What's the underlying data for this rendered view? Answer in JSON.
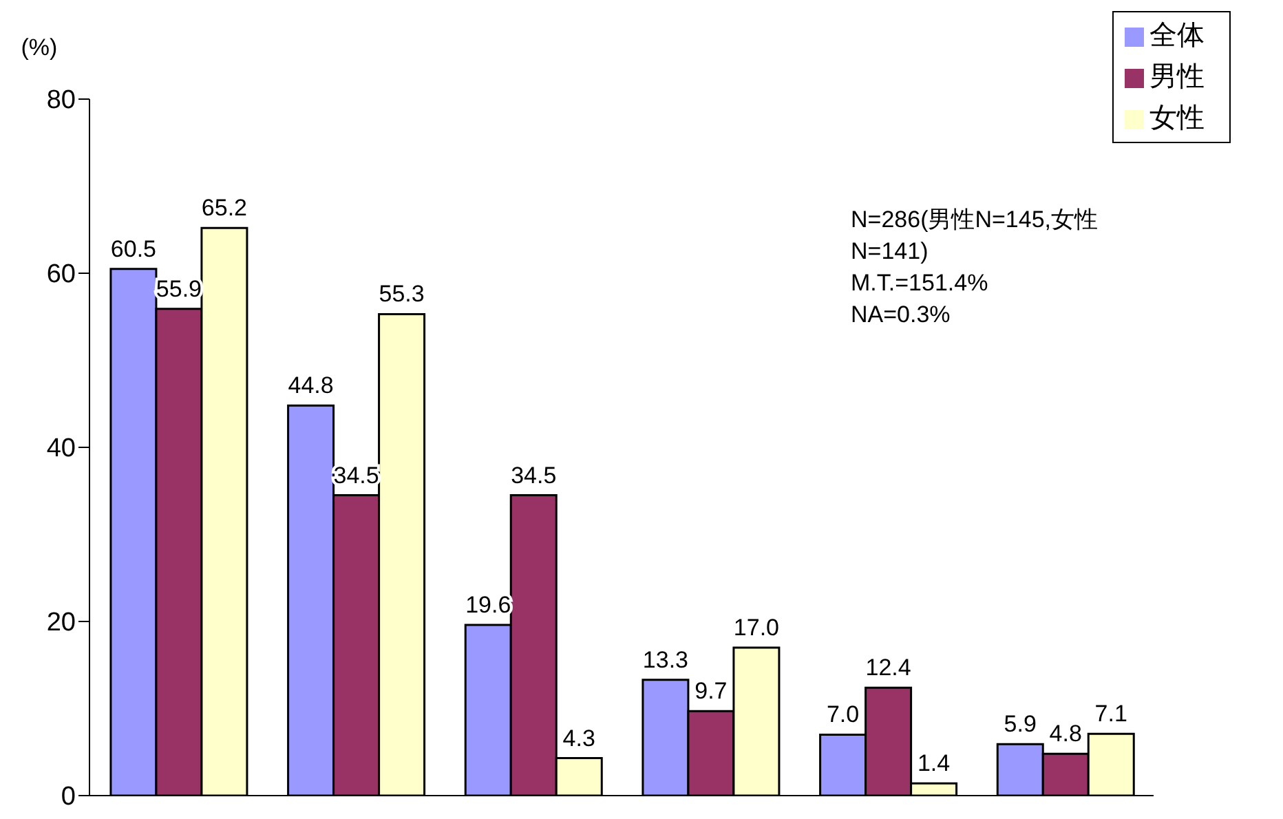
{
  "chart_data": {
    "type": "bar",
    "ylabel": "(%)",
    "categories": [
      null,
      null,
      null,
      null,
      null,
      null
    ],
    "series": [
      {
        "name": "全体",
        "color": "#9999ff",
        "values": [
          60.5,
          44.8,
          19.6,
          13.3,
          7.0,
          5.9
        ],
        "value_labels": [
          "60.5",
          "44.8",
          "19.6",
          "13.3",
          "7.0",
          "5.9"
        ]
      },
      {
        "name": "男性",
        "color": "#993366",
        "values": [
          55.9,
          34.5,
          34.5,
          9.7,
          12.4,
          4.8
        ],
        "value_labels": [
          "55.9",
          "34.5",
          "34.5",
          "9.7",
          "12.4",
          "4.8"
        ]
      },
      {
        "name": "女性",
        "color": "#ffffcc",
        "values": [
          65.2,
          55.3,
          4.3,
          17.0,
          1.4,
          7.1
        ],
        "value_labels": [
          "65.2",
          "55.3",
          "4.3",
          "17.0",
          "1.4",
          "7.1"
        ]
      }
    ],
    "ylim": [
      0,
      80
    ],
    "yticks": [
      0,
      20,
      40,
      60,
      80
    ],
    "grid": false,
    "legend": "top right",
    "tick_labels": "y",
    "annotations": [
      "N=286(男性N=145,女性N=141)",
      "M.T.=151.4%",
      "NA=0.3%"
    ]
  }
}
